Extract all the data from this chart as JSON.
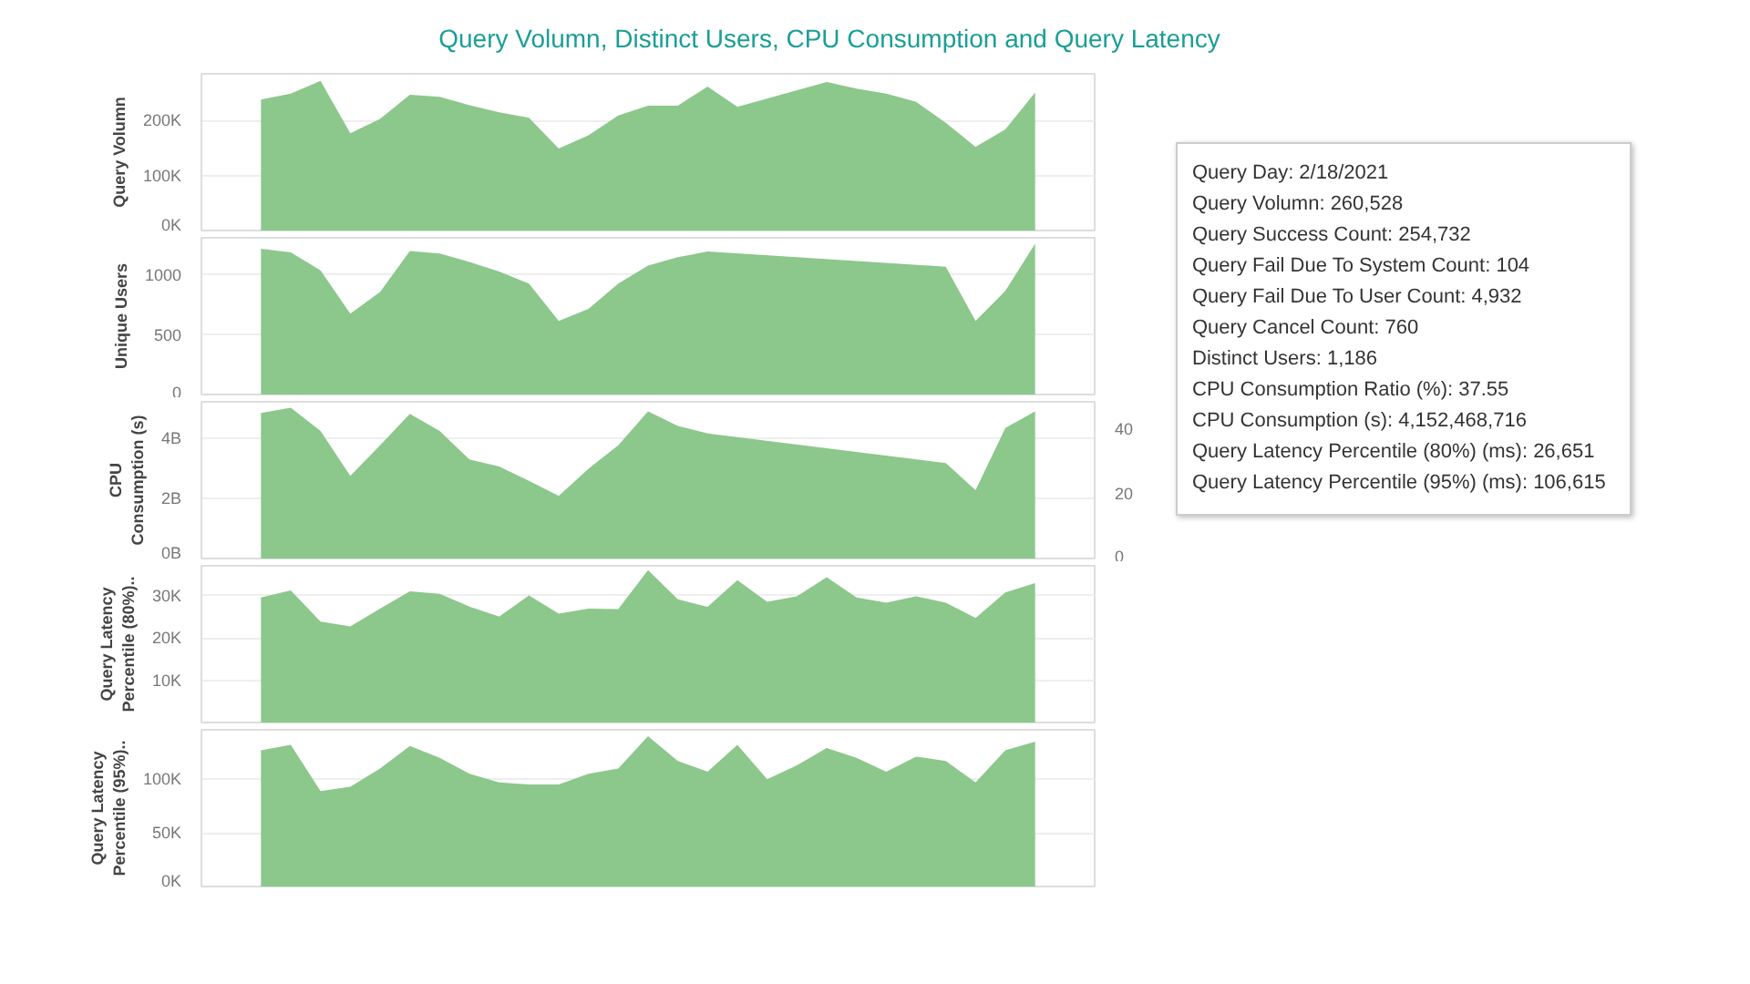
{
  "chart_data": [
    {
      "type": "area",
      "title": "Query Volumn, Distinct Users, CPU Consumption and Query Latency",
      "ylabel": "Query Volumn",
      "categories": [
        null,
        null,
        null,
        null,
        null,
        null,
        null,
        null,
        null,
        null,
        null,
        null,
        null,
        null,
        null,
        null,
        null,
        null,
        null,
        null,
        null,
        null,
        null,
        null,
        null,
        null,
        null
      ],
      "series": [
        {
          "color": "#8cc78c",
          "values": [
            238000,
            249000,
            272000,
            177000,
            203000,
            247000,
            243000,
            228000,
            215000,
            205000,
            149000,
            173000,
            209000,
            227000,
            227000,
            262000,
            225000,
            null,
            null,
            270000,
            258000,
            249000,
            234000,
            196000,
            152000,
            184000,
            251000
          ]
        }
      ],
      "ylim": [
        0,
        285000
      ],
      "yticks": [
        {
          "value": 0,
          "label": "0K"
        },
        {
          "value": 100000,
          "label": "100K"
        },
        {
          "value": 200000,
          "label": "200K"
        }
      ],
      "grid": "y",
      "tick_labels": "y",
      "annotations": [
        "Query Day: 2/18/2021",
        "Query Volumn: 260,528",
        "Query Success Count: 254,732",
        "Query Fail Due To System Count: 104",
        "Query Fail Due To User Count: 4,932",
        "Query Cancel Count: 760",
        "Distinct Users: 1,186",
        "CPU Consumption Ratio (%): 37.55",
        "CPU Consumption (s): 4,152,468,716",
        "Query Latency Percentile (80%) (ms): 26,651",
        "Query Latency Percentile (95%) (ms): 106,615"
      ]
    },
    {
      "type": "area",
      "ylabel": "Unique Users",
      "categories": [
        null,
        null,
        null,
        null,
        null,
        null,
        null,
        null,
        null,
        null,
        null,
        null,
        null,
        null,
        null,
        null,
        null,
        null,
        null,
        null,
        null,
        null,
        null,
        null,
        null,
        null,
        null
      ],
      "series": [
        {
          "color": "#8cc78c",
          "values": [
            1210,
            1180,
            1030,
            670,
            850,
            1190,
            1170,
            1100,
            1020,
            920,
            610,
            710,
            920,
            1070,
            1140,
            1186,
            null,
            null,
            null,
            null,
            null,
            null,
            null,
            1060,
            610,
            860,
            1250
          ]
        }
      ],
      "ylim": [
        0,
        1300
      ],
      "yticks": [
        0,
        500,
        1000
      ],
      "grid": "y",
      "tick_labels": "y"
    },
    {
      "type": "area",
      "ylabel": "CPU Consumption (s)",
      "categories": [
        null,
        null,
        null,
        null,
        null,
        null,
        null,
        null,
        null,
        null,
        null,
        null,
        null,
        null,
        null,
        null,
        null,
        null,
        null,
        null,
        null,
        null,
        null,
        null,
        null,
        null,
        null
      ],
      "series": [
        {
          "color": "#8cc78c",
          "values": [
            4830000000,
            5000000000,
            4230000000,
            2740000000,
            3760000000,
            4800000000,
            4230000000,
            3290000000,
            3050000000,
            2580000000,
            2080000000,
            2980000000,
            3760000000,
            4880000000,
            4400000000,
            4150000000,
            null,
            null,
            null,
            null,
            null,
            null,
            null,
            3170000000,
            2270000000,
            4330000000,
            4880000000
          ]
        }
      ],
      "ylim": [
        0,
        5200000000
      ],
      "yticks": [
        {
          "value": 0,
          "label": "0B"
        },
        {
          "value": 2000000000,
          "label": "2B"
        },
        {
          "value": 4000000000,
          "label": "4B"
        }
      ],
      "y2lim": [
        0,
        48
      ],
      "y2ticks": [
        0,
        20,
        40
      ],
      "grid": "y",
      "tick_labels": "y"
    },
    {
      "type": "area",
      "ylabel": "Query Latency Percentile (80%)..",
      "categories": [
        null,
        null,
        null,
        null,
        null,
        null,
        null,
        null,
        null,
        null,
        null,
        null,
        null,
        null,
        null,
        null,
        null,
        null,
        null,
        null,
        null,
        null,
        null,
        null,
        null,
        null,
        null
      ],
      "series": [
        {
          "color": "#8cc78c",
          "values": [
            29500,
            31200,
            23800,
            22700,
            26900,
            31000,
            30400,
            27400,
            25000,
            30000,
            25700,
            26900,
            26800,
            36000,
            29100,
            27300,
            33600,
            28500,
            29800,
            34300,
            29500,
            28300,
            29800,
            28300,
            24700,
            30700,
            32900
          ]
        }
      ],
      "ylim": [
        0,
        37000
      ],
      "yticks": [
        {
          "value": 10000,
          "label": "10K"
        },
        {
          "value": 20000,
          "label": "20K"
        },
        {
          "value": 30000,
          "label": "30K"
        }
      ],
      "grid": "y",
      "tick_labels": "y"
    },
    {
      "type": "area",
      "ylabel": "Query Latency Percentile (95%)..",
      "categories": [
        null,
        null,
        null,
        null,
        null,
        null,
        null,
        null,
        null,
        null,
        null,
        null,
        null,
        null,
        null,
        null,
        null,
        null,
        null,
        null,
        null,
        null,
        null,
        null,
        null,
        null,
        null
      ],
      "series": [
        {
          "color": "#8cc78c",
          "values": [
            127000,
            132000,
            89000,
            93000,
            110000,
            131000,
            120000,
            105000,
            97000,
            95000,
            95000,
            105000,
            110000,
            140000,
            117000,
            107000,
            132000,
            100000,
            113000,
            129000,
            120000,
            107000,
            121000,
            117000,
            97000,
            127000,
            135000
          ]
        }
      ],
      "ylim": [
        0,
        146000
      ],
      "yticks": [
        {
          "value": 0,
          "label": "0K"
        },
        {
          "value": 50000,
          "label": "50K"
        },
        {
          "value": 100000,
          "label": "100K"
        }
      ],
      "grid": "y",
      "tick_labels": "y"
    }
  ]
}
